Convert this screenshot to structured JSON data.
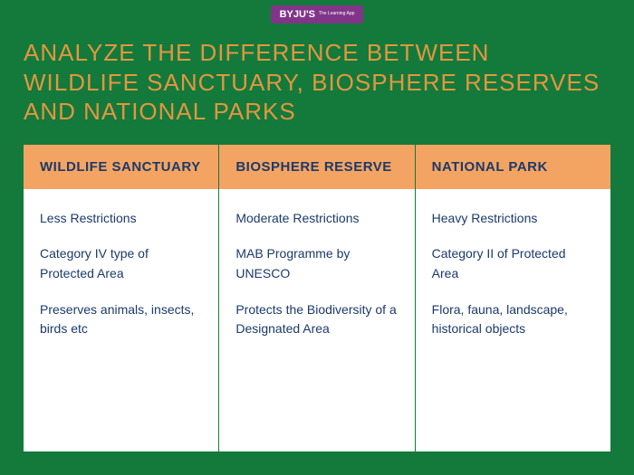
{
  "logo": {
    "brand": "BYJU'S",
    "tagline": "The Learning App"
  },
  "title": "ANALYZE THE DIFFERENCE BETWEEN WILDLIFE SANCTUARY, BIOSPHERE RESERVES AND NATIONAL PARKS",
  "colors": {
    "page_bg": "#137a3c",
    "title_color": "#e3963e",
    "header_bg": "#f4a462",
    "text_color": "#1b3a6b",
    "cell_bg": "#ffffff",
    "divider": "#137a3c",
    "logo_bg": "#813588"
  },
  "table": {
    "columns": [
      {
        "header": "WILDLIFE SANCTUARY",
        "rows": [
          "Less Restrictions",
          "Category IV type of Protected Area",
          "Preserves animals, insects, birds etc"
        ]
      },
      {
        "header": "BIOSPHERE RESERVE",
        "rows": [
          "Moderate Restrictions",
          "MAB Programme by UNESCO",
          "Protects the Biodiversity of a Designated Area"
        ]
      },
      {
        "header": "NATIONAL PARK",
        "rows": [
          "Heavy Restrictions",
          "Category II of Protected Area",
          "Flora, fauna, landscape, historical objects"
        ]
      }
    ]
  }
}
